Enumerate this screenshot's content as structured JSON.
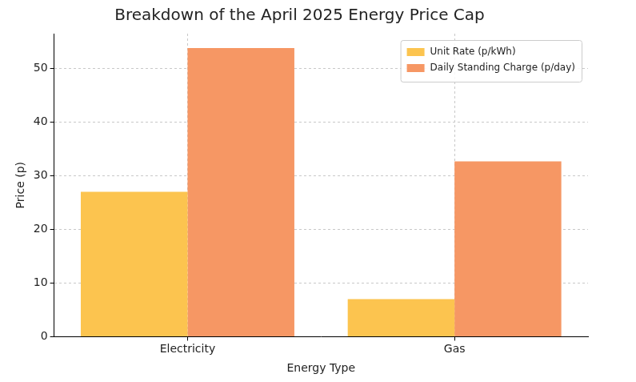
{
  "chart_data": {
    "type": "bar",
    "title": "Breakdown of the April 2025 Energy Price Cap",
    "x_label": "Energy Type",
    "y_label": "Price (p)",
    "categories": [
      "Electricity",
      "Gas"
    ],
    "series": [
      {
        "name": "Unit Rate (p/kWh)",
        "color": "#fcc44f",
        "values": [
          27.0,
          7.0
        ]
      },
      {
        "name": "Daily Standing Charge (p/day)",
        "color": "#f69764",
        "values": [
          53.8,
          32.7
        ]
      }
    ],
    "ylim": [
      0,
      56.5
    ],
    "yticks": [
      0,
      10,
      20,
      30,
      40,
      50
    ],
    "grid": true,
    "legend": "upper right"
  }
}
